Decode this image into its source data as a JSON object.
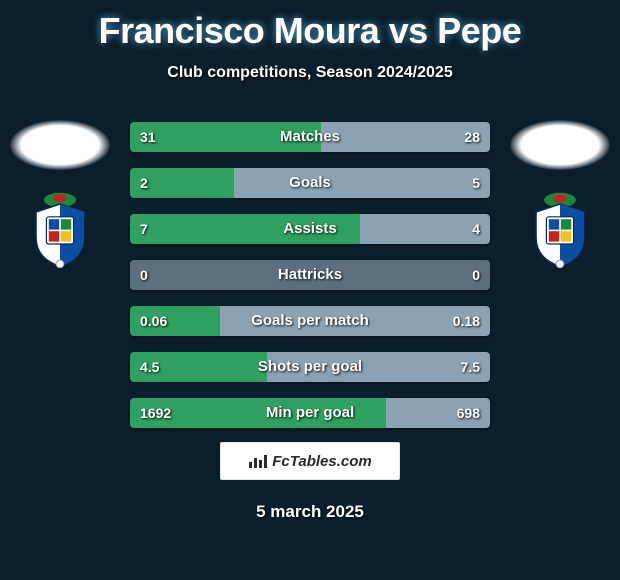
{
  "background": {
    "base_color": "#0b1e2b",
    "curve_color_top": "#12314a",
    "curve_color_bottom": "#0a1721"
  },
  "header": {
    "title": "Francisco Moura vs Pepe",
    "subtitle": "Club competitions, Season 2024/2025",
    "title_color": "#ffffff",
    "title_fontsize": 36,
    "subtitle_fontsize": 16
  },
  "players": {
    "left": {
      "name": "Francisco Moura",
      "club": "FC Porto"
    },
    "right": {
      "name": "Pepe",
      "club": "FC Porto"
    }
  },
  "club_badge": {
    "shield_blue": "#0b4ea2",
    "shield_white": "#ffffff",
    "dragon_green": "#1a8a3a",
    "dragon_red": "#c92020",
    "border": "#0a2a55"
  },
  "stats": {
    "bar_track_color": "#163a52",
    "bar_left_color": "#2fa05f",
    "bar_right_color": "#8aa2b2",
    "bar_neutral_color": "#5b6f7c",
    "label_color": "#ffffff",
    "value_color": "#ffffff",
    "label_fontsize": 15,
    "value_fontsize": 14,
    "rows": [
      {
        "label": "Matches",
        "left": "31",
        "right": "28",
        "left_pct": 53,
        "right_pct": 47
      },
      {
        "label": "Goals",
        "left": "2",
        "right": "5",
        "left_pct": 29,
        "right_pct": 71
      },
      {
        "label": "Assists",
        "left": "7",
        "right": "4",
        "left_pct": 64,
        "right_pct": 36
      },
      {
        "label": "Hattricks",
        "left": "0",
        "right": "0",
        "left_pct": 0,
        "right_pct": 0
      },
      {
        "label": "Goals per match",
        "left": "0.06",
        "right": "0.18",
        "left_pct": 25,
        "right_pct": 75
      },
      {
        "label": "Shots per goal",
        "left": "4.5",
        "right": "7.5",
        "left_pct": 38,
        "right_pct": 62
      },
      {
        "label": "Min per goal",
        "left": "1692",
        "right": "698",
        "left_pct": 71,
        "right_pct": 29
      }
    ]
  },
  "footer": {
    "brand": "FcTables.com",
    "date": "5 march 2025",
    "box_bg": "#ffffff",
    "box_border": "#e5e5e5",
    "brand_color": "#2a2a2a"
  }
}
